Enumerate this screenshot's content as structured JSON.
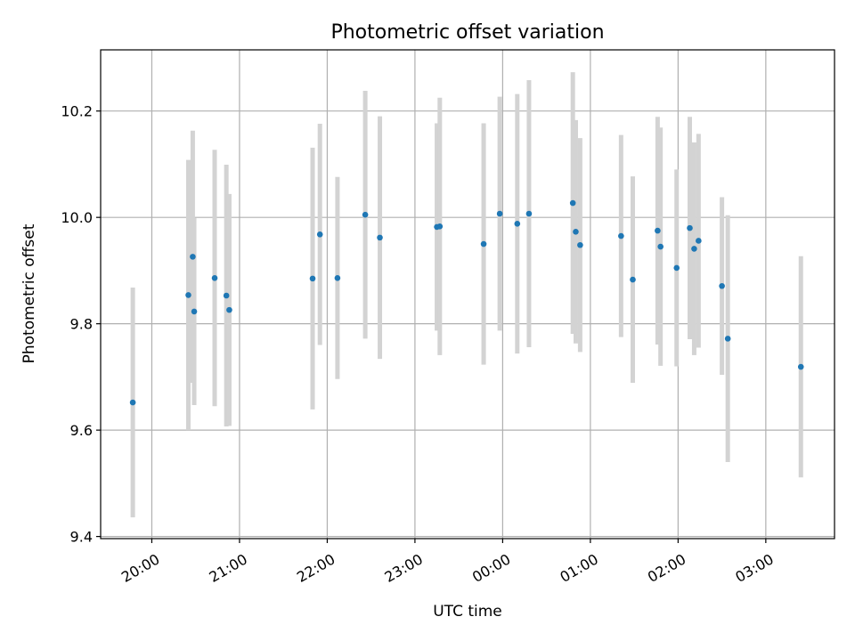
{
  "chart_data": {
    "type": "scatter",
    "title": "Photometric offset variation",
    "xlabel": "UTC time",
    "ylabel": "Photometric offset",
    "xlim": [
      "19:25",
      "03:47"
    ],
    "ylim": [
      9.396,
      10.315
    ],
    "grid": true,
    "xticks": [
      "20:00",
      "21:00",
      "22:00",
      "23:00",
      "00:00",
      "01:00",
      "02:00",
      "03:00"
    ],
    "yticks": [
      9.4,
      9.6,
      9.8,
      10.0,
      10.2
    ],
    "ytick_labels": [
      "9.4",
      "9.6",
      "9.8",
      "10.0",
      "10.2"
    ],
    "colors": {
      "point": "#1f77b4",
      "errorbar": "#d3d3d3",
      "grid": "#b0b0b0"
    },
    "points": [
      {
        "time": "19:47",
        "value": 9.652,
        "err": 0.216
      },
      {
        "time": "20:25",
        "value": 9.854,
        "err": 0.254
      },
      {
        "time": "20:28",
        "value": 9.926,
        "err": 0.237
      },
      {
        "time": "20:29",
        "value": 9.823,
        "err": 0.176
      },
      {
        "time": "20:43",
        "value": 9.886,
        "err": 0.241
      },
      {
        "time": "20:51",
        "value": 9.853,
        "err": 0.246
      },
      {
        "time": "20:53",
        "value": 9.826,
        "err": 0.218
      },
      {
        "time": "21:50",
        "value": 9.885,
        "err": 0.246
      },
      {
        "time": "21:55",
        "value": 9.968,
        "err": 0.208
      },
      {
        "time": "22:07",
        "value": 9.886,
        "err": 0.19
      },
      {
        "time": "22:26",
        "value": 10.005,
        "err": 0.233
      },
      {
        "time": "22:36",
        "value": 9.962,
        "err": 0.228
      },
      {
        "time": "23:15",
        "value": 9.982,
        "err": 0.195
      },
      {
        "time": "23:17",
        "value": 9.983,
        "err": 0.242
      },
      {
        "time": "23:47",
        "value": 9.95,
        "err": 0.227
      },
      {
        "time": "23:58",
        "value": 10.007,
        "err": 0.22
      },
      {
        "time": "00:10",
        "value": 9.988,
        "err": 0.244
      },
      {
        "time": "00:18",
        "value": 10.007,
        "err": 0.251
      },
      {
        "time": "00:48",
        "value": 10.027,
        "err": 0.246
      },
      {
        "time": "00:50",
        "value": 9.973,
        "err": 0.21
      },
      {
        "time": "00:53",
        "value": 9.948,
        "err": 0.201
      },
      {
        "time": "01:21",
        "value": 9.965,
        "err": 0.19
      },
      {
        "time": "01:29",
        "value": 9.883,
        "err": 0.194
      },
      {
        "time": "01:46",
        "value": 9.975,
        "err": 0.214
      },
      {
        "time": "01:48",
        "value": 9.945,
        "err": 0.224
      },
      {
        "time": "01:59",
        "value": 9.905,
        "err": 0.185
      },
      {
        "time": "02:08",
        "value": 9.98,
        "err": 0.209
      },
      {
        "time": "02:11",
        "value": 9.941,
        "err": 0.2
      },
      {
        "time": "02:14",
        "value": 9.956,
        "err": 0.201
      },
      {
        "time": "02:30",
        "value": 9.871,
        "err": 0.167
      },
      {
        "time": "02:34",
        "value": 9.772,
        "err": 0.232
      },
      {
        "time": "03:24",
        "value": 9.719,
        "err": 0.208
      }
    ]
  }
}
